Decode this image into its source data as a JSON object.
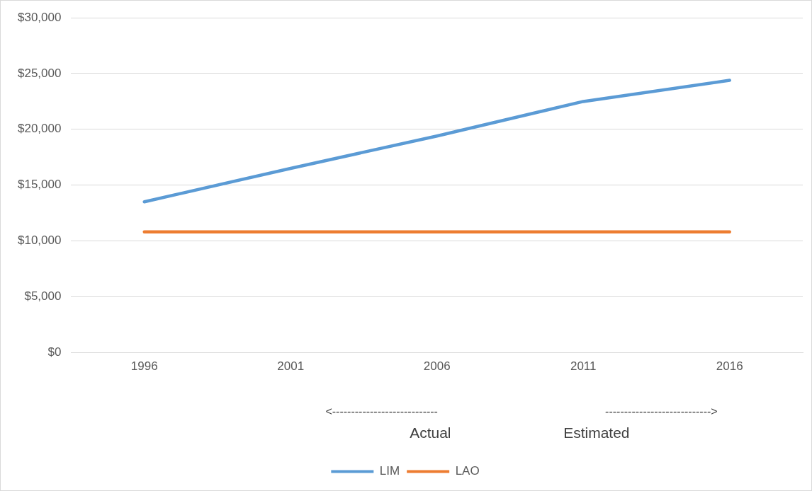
{
  "chart_data": {
    "type": "line",
    "categories": [
      "1996",
      "2001",
      "2006",
      "2011",
      "2016"
    ],
    "series": [
      {
        "name": "LIM",
        "color": "#5b9bd5",
        "values": [
          13500,
          16500,
          19400,
          22500,
          24400
        ]
      },
      {
        "name": "LAO",
        "color": "#ed7d31",
        "values": [
          10800,
          10800,
          10800,
          10800,
          10800
        ]
      }
    ],
    "ylim": [
      0,
      30000
    ],
    "yticks": [
      {
        "value": 0,
        "label": "$0"
      },
      {
        "value": 5000,
        "label": "$5,000"
      },
      {
        "value": 10000,
        "label": "$10,000"
      },
      {
        "value": 15000,
        "label": "$15,000"
      },
      {
        "value": 20000,
        "label": "$20,000"
      },
      {
        "value": 25000,
        "label": "$25,000"
      },
      {
        "value": 30000,
        "label": "$30,000"
      }
    ],
    "grid": "y",
    "legend": "bottom",
    "marker": "none",
    "line_style": "solid",
    "annotations": [
      "<----------------------------",
      "---------------------------->",
      "Actual",
      "Estimated"
    ]
  }
}
